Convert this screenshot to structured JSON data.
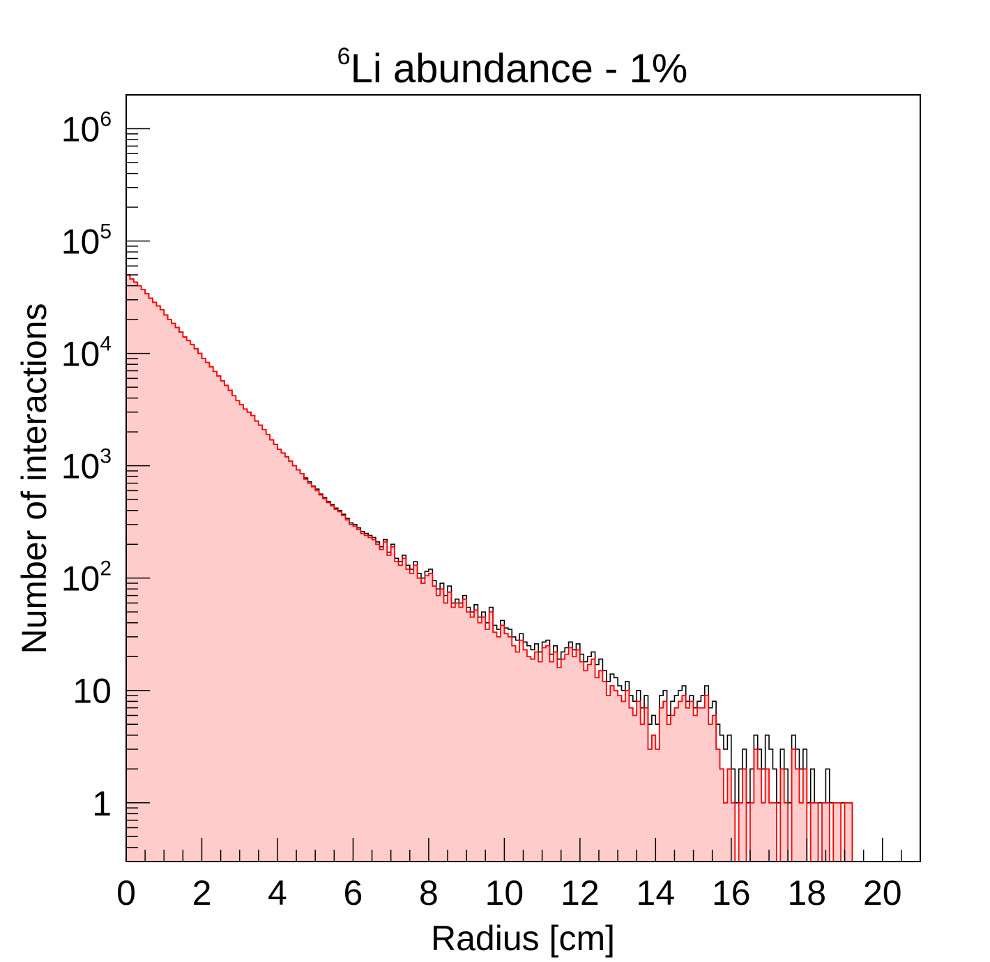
{
  "chart_data": {
    "type": "histogram",
    "title": "abundance - 1%",
    "title_prefix": "Li",
    "title_superscript": "6",
    "xlabel": "Radius [cm]",
    "ylabel": "Number of interactions",
    "xlim": [
      0,
      21
    ],
    "ylim": [
      0.3,
      2000000
    ],
    "log_y": true,
    "grid": false,
    "legend": "none",
    "bin_width": 0.1,
    "x_ticks": [
      "0",
      "2",
      "4",
      "6",
      "8",
      "10",
      "12",
      "14",
      "16",
      "18",
      "20"
    ],
    "y_ticks": [
      {
        "base": "1",
        "exp": "",
        "value": 1
      },
      {
        "base": "10",
        "exp": "",
        "value": 10
      },
      {
        "base": "10",
        "exp": "2",
        "value": 100
      },
      {
        "base": "10",
        "exp": "3",
        "value": 1000
      },
      {
        "base": "10",
        "exp": "4",
        "value": 10000
      },
      {
        "base": "10",
        "exp": "5",
        "value": 100000
      },
      {
        "base": "10",
        "exp": "6",
        "value": 1000000
      }
    ],
    "series": [
      {
        "color": "#000000",
        "fill": "none",
        "x_start": 0,
        "values": [
          50000,
          46000,
          43000,
          40000,
          37000,
          34000,
          31000,
          28500,
          26500,
          24500,
          22000,
          20000,
          18500,
          17000,
          15500,
          14000,
          13000,
          12000,
          11000,
          10000,
          9000,
          8300,
          7600,
          6900,
          6300,
          5700,
          5200,
          4700,
          4200,
          3800,
          3500,
          3200,
          3000,
          2800,
          2500,
          2300,
          2100,
          1900,
          1700,
          1550,
          1400,
          1300,
          1200,
          1100,
          1000,
          920,
          850,
          780,
          720,
          660,
          620,
          560,
          520,
          480,
          450,
          420,
          400,
          370,
          340,
          310,
          300,
          280,
          260,
          250,
          240,
          230,
          210,
          190,
          220,
          170,
          200,
          150,
          140,
          160,
          130,
          120,
          140,
          110,
          100,
          115,
          120,
          95,
          80,
          90,
          70,
          85,
          60,
          65,
          60,
          70,
          55,
          50,
          58,
          45,
          50,
          40,
          55,
          38,
          35,
          42,
          36,
          35,
          30,
          28,
          32,
          27,
          25,
          23,
          26,
          22,
          27,
          28,
          21,
          25,
          19,
          22,
          24,
          27,
          23,
          26,
          21,
          18,
          20,
          22,
          17,
          19,
          15,
          12,
          14,
          13,
          11,
          10,
          12,
          9,
          8,
          10,
          7,
          9,
          5,
          6,
          5,
          9,
          10,
          6,
          8,
          9,
          10,
          11,
          8,
          9,
          7,
          8,
          9,
          11,
          7,
          8,
          5,
          4,
          3,
          4,
          2,
          1,
          2,
          3,
          1,
          2,
          4,
          3,
          2,
          4,
          3,
          2,
          1,
          3,
          2,
          1,
          4,
          3,
          2,
          3,
          1,
          2,
          1,
          1,
          1,
          2,
          1,
          1,
          1,
          1,
          1,
          1
        ]
      },
      {
        "color": "#ff0000",
        "fill": "#ffcccc",
        "x_start": 0,
        "values": [
          50000,
          46000,
          43000,
          40000,
          37000,
          34000,
          31000,
          28500,
          26500,
          24500,
          22000,
          20000,
          18500,
          17000,
          15500,
          14000,
          13000,
          12000,
          11000,
          10000,
          9000,
          8300,
          7600,
          6900,
          6300,
          5700,
          5200,
          4700,
          4200,
          3800,
          3500,
          3200,
          3000,
          2800,
          2500,
          2300,
          2100,
          1900,
          1700,
          1550,
          1400,
          1300,
          1200,
          1100,
          1000,
          920,
          850,
          760,
          700,
          650,
          600,
          550,
          510,
          470,
          440,
          410,
          390,
          360,
          330,
          300,
          290,
          270,
          250,
          240,
          230,
          220,
          200,
          180,
          210,
          160,
          190,
          140,
          130,
          150,
          120,
          110,
          130,
          100,
          90,
          105,
          110,
          85,
          70,
          80,
          60,
          75,
          55,
          60,
          55,
          65,
          50,
          45,
          52,
          40,
          45,
          35,
          50,
          33,
          30,
          38,
          32,
          30,
          25,
          22,
          28,
          23,
          20,
          19,
          22,
          18,
          24,
          25,
          18,
          22,
          16,
          19,
          21,
          24,
          20,
          23,
          18,
          15,
          17,
          19,
          13,
          15,
          12,
          9,
          11,
          10,
          9,
          8,
          10,
          7,
          6,
          8,
          5,
          7,
          3,
          4,
          3,
          7,
          8,
          5,
          6,
          7,
          8,
          9,
          7,
          8,
          6,
          7,
          7,
          9,
          5,
          6,
          3,
          2,
          1,
          2,
          1,
          0,
          1,
          2,
          0,
          1,
          3,
          2,
          1,
          2,
          1,
          1,
          0,
          2,
          1,
          0,
          3,
          2,
          1,
          2,
          0,
          1,
          1,
          0,
          1,
          1,
          0,
          1,
          1,
          0,
          1,
          1
        ]
      }
    ]
  }
}
